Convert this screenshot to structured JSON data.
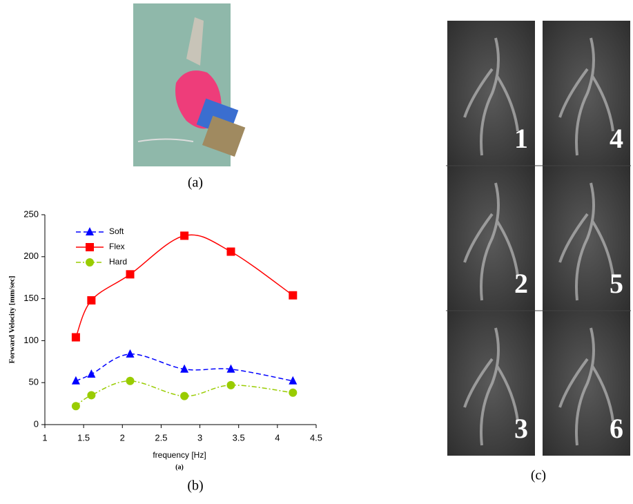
{
  "photo_caption": "(a)",
  "chart_data": {
    "type": "line",
    "x_label": "frequency [Hz]",
    "y_label": "Forward Velocity [mm/sec]",
    "subcaption": "(a)",
    "x": [
      1.4,
      1.6,
      2.1,
      2.8,
      3.4,
      4.2
    ],
    "series": [
      {
        "name": "Soft",
        "color": "#0000ff",
        "line_style": "dashed",
        "marker": "triangle",
        "values": [
          52,
          60,
          84,
          66,
          66,
          52
        ]
      },
      {
        "name": "Flex",
        "color": "#ff0000",
        "line_style": "solid",
        "marker": "square",
        "values": [
          104,
          148,
          179,
          225,
          206,
          154
        ]
      },
      {
        "name": "Hard",
        "color": "#99cc00",
        "line_style": "dashdot",
        "marker": "circle",
        "values": [
          22,
          35,
          52,
          34,
          47,
          38
        ]
      }
    ],
    "xlim": [
      1,
      4.5
    ],
    "ylim": [
      0,
      250
    ],
    "xticks": [
      1,
      1.5,
      2,
      2.5,
      3,
      3.5,
      4,
      4.5
    ],
    "yticks": [
      0,
      50,
      100,
      150,
      200,
      250
    ],
    "legend": "upper left"
  },
  "chart_caption": "(b)",
  "frames": {
    "labels": [
      "1",
      "2",
      "3",
      "4",
      "5",
      "6"
    ],
    "caption": "(c)"
  }
}
